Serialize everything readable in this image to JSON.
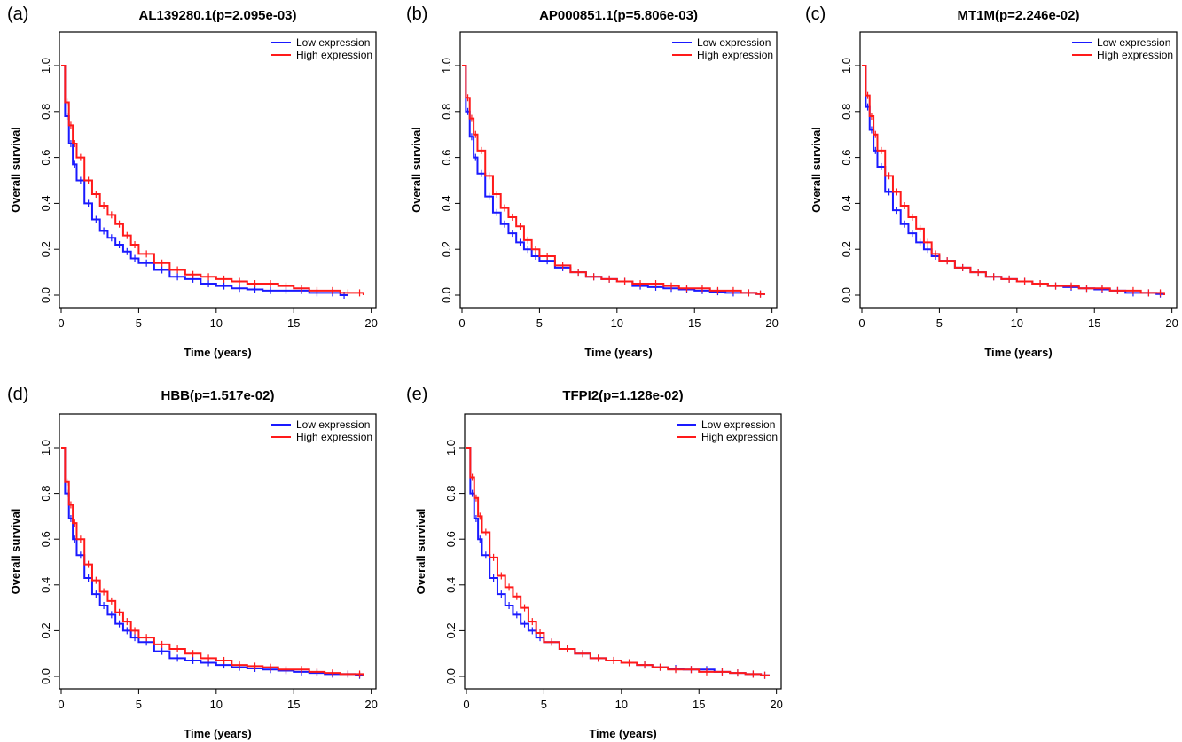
{
  "figure": {
    "colors": {
      "low": "#1a1aff",
      "high": "#ff1a1a",
      "frame": "#000000"
    }
  },
  "chart_data": [
    {
      "type": "line",
      "panel": "(a)",
      "title": "AL139280.1(p=2.095e-03)",
      "xlabel": "Time (years)",
      "ylabel": "Overall survival",
      "xlim": [
        0,
        20
      ],
      "ylim": [
        0,
        1
      ],
      "xticks": [
        "0",
        "5",
        "10",
        "15",
        "20"
      ],
      "yticks": [
        "0.0",
        "0.2",
        "0.4",
        "0.6",
        "0.8",
        "1.0"
      ],
      "legend": {
        "position": "top-right",
        "entries": [
          "Low expression",
          "High expression"
        ]
      },
      "series": [
        {
          "name": "Low expression",
          "color": "#1a1aff",
          "x": [
            0,
            0.25,
            0.5,
            0.75,
            1,
            1.5,
            2,
            2.5,
            3,
            3.5,
            4,
            4.5,
            5,
            6,
            7,
            8,
            9,
            10,
            11,
            12,
            13,
            14,
            15,
            16,
            17,
            18,
            18.5
          ],
          "y": [
            1.0,
            0.78,
            0.66,
            0.57,
            0.5,
            0.4,
            0.33,
            0.28,
            0.25,
            0.22,
            0.19,
            0.16,
            0.14,
            0.11,
            0.08,
            0.07,
            0.05,
            0.04,
            0.03,
            0.025,
            0.02,
            0.02,
            0.02,
            0.01,
            0.01,
            0.0,
            0.0
          ]
        },
        {
          "name": "High expression",
          "color": "#ff1a1a",
          "x": [
            0,
            0.25,
            0.5,
            0.75,
            1,
            1.5,
            2,
            2.5,
            3,
            3.5,
            4,
            4.5,
            5,
            6,
            7,
            8,
            9,
            10,
            11,
            12,
            13,
            14,
            15,
            16,
            17,
            18,
            19,
            19.5
          ],
          "y": [
            1.0,
            0.84,
            0.74,
            0.66,
            0.6,
            0.5,
            0.44,
            0.39,
            0.35,
            0.31,
            0.26,
            0.22,
            0.18,
            0.14,
            0.11,
            0.09,
            0.08,
            0.07,
            0.06,
            0.05,
            0.05,
            0.04,
            0.03,
            0.02,
            0.02,
            0.01,
            0.01,
            0.0
          ]
        }
      ]
    },
    {
      "type": "line",
      "panel": "(b)",
      "title": "AP000851.1(p=5.806e-03)",
      "xlabel": "Time (years)",
      "ylabel": "Overall survival",
      "xlim": [
        0,
        20
      ],
      "ylim": [
        0,
        1
      ],
      "xticks": [
        "0",
        "5",
        "10",
        "15",
        "20"
      ],
      "yticks": [
        "0.0",
        "0.2",
        "0.4",
        "0.6",
        "0.8",
        "1.0"
      ],
      "legend": {
        "position": "top-right",
        "entries": [
          "Low expression",
          "High expression"
        ]
      },
      "series": [
        {
          "name": "Low expression",
          "color": "#1a1aff",
          "x": [
            0,
            0.25,
            0.5,
            0.75,
            1,
            1.5,
            2,
            2.5,
            3,
            3.5,
            4,
            4.5,
            5,
            6,
            7,
            8,
            9,
            10,
            11,
            12,
            13,
            14,
            15,
            16,
            17,
            18,
            19,
            19.5
          ],
          "y": [
            1.0,
            0.8,
            0.69,
            0.6,
            0.53,
            0.43,
            0.36,
            0.31,
            0.27,
            0.23,
            0.2,
            0.17,
            0.15,
            0.12,
            0.1,
            0.08,
            0.07,
            0.06,
            0.04,
            0.035,
            0.03,
            0.025,
            0.02,
            0.015,
            0.01,
            0.01,
            0.005,
            0.0
          ]
        },
        {
          "name": "High expression",
          "color": "#ff1a1a",
          "x": [
            0,
            0.25,
            0.5,
            0.75,
            1,
            1.5,
            2,
            2.5,
            3,
            3.5,
            4,
            4.5,
            5,
            6,
            7,
            8,
            9,
            10,
            11,
            12,
            13,
            14,
            15,
            16,
            17,
            18,
            19,
            19.5
          ],
          "y": [
            1.0,
            0.86,
            0.77,
            0.7,
            0.63,
            0.52,
            0.44,
            0.38,
            0.34,
            0.3,
            0.24,
            0.2,
            0.17,
            0.13,
            0.1,
            0.08,
            0.07,
            0.06,
            0.05,
            0.05,
            0.04,
            0.03,
            0.03,
            0.02,
            0.02,
            0.01,
            0.005,
            0.0
          ]
        }
      ]
    },
    {
      "type": "line",
      "panel": "(c)",
      "title": "MT1M(p=2.246e-02)",
      "xlabel": "Time (years)",
      "ylabel": "Overall survival",
      "xlim": [
        0,
        20
      ],
      "ylim": [
        0,
        1
      ],
      "xticks": [
        "0",
        "5",
        "10",
        "15",
        "20"
      ],
      "yticks": [
        "0.0",
        "0.2",
        "0.4",
        "0.6",
        "0.8",
        "1.0"
      ],
      "legend": {
        "position": "top-right",
        "entries": [
          "Low expression",
          "High expression"
        ]
      },
      "series": [
        {
          "name": "Low expression",
          "color": "#1a1aff",
          "x": [
            0,
            0.25,
            0.5,
            0.75,
            1,
            1.5,
            2,
            2.5,
            3,
            3.5,
            4,
            4.5,
            5,
            6,
            7,
            8,
            9,
            10,
            11,
            12,
            13,
            14,
            15,
            16,
            17,
            18,
            19,
            19.5
          ],
          "y": [
            1.0,
            0.82,
            0.72,
            0.63,
            0.56,
            0.45,
            0.37,
            0.31,
            0.27,
            0.23,
            0.2,
            0.17,
            0.15,
            0.12,
            0.1,
            0.08,
            0.07,
            0.06,
            0.05,
            0.04,
            0.035,
            0.03,
            0.025,
            0.02,
            0.01,
            0.01,
            0.005,
            0.0
          ]
        },
        {
          "name": "High expression",
          "color": "#ff1a1a",
          "x": [
            0,
            0.25,
            0.5,
            0.75,
            1,
            1.5,
            2,
            2.5,
            3,
            3.5,
            4,
            4.5,
            5,
            6,
            7,
            8,
            9,
            10,
            11,
            12,
            13,
            14,
            15,
            16,
            17,
            18,
            19,
            19.5
          ],
          "y": [
            1.0,
            0.87,
            0.78,
            0.7,
            0.63,
            0.52,
            0.45,
            0.39,
            0.34,
            0.29,
            0.23,
            0.18,
            0.15,
            0.12,
            0.1,
            0.08,
            0.07,
            0.06,
            0.05,
            0.04,
            0.04,
            0.03,
            0.03,
            0.02,
            0.02,
            0.01,
            0.01,
            0.0
          ]
        }
      ]
    },
    {
      "type": "line",
      "panel": "(d)",
      "title": "HBB(p=1.517e-02)",
      "xlabel": "Time (years)",
      "ylabel": "Overall survival",
      "xlim": [
        0,
        20
      ],
      "ylim": [
        0,
        1
      ],
      "xticks": [
        "0",
        "5",
        "10",
        "15",
        "20"
      ],
      "yticks": [
        "0.0",
        "0.2",
        "0.4",
        "0.6",
        "0.8",
        "1.0"
      ],
      "legend": {
        "position": "top-right",
        "entries": [
          "Low expression",
          "High expression"
        ]
      },
      "series": [
        {
          "name": "Low expression",
          "color": "#1a1aff",
          "x": [
            0,
            0.25,
            0.5,
            0.75,
            1,
            1.5,
            2,
            2.5,
            3,
            3.5,
            4,
            4.5,
            5,
            6,
            7,
            8,
            9,
            10,
            11,
            12,
            13,
            14,
            15,
            16,
            17,
            18,
            19,
            19.5
          ],
          "y": [
            1.0,
            0.8,
            0.69,
            0.6,
            0.53,
            0.43,
            0.36,
            0.31,
            0.27,
            0.23,
            0.2,
            0.17,
            0.15,
            0.11,
            0.08,
            0.07,
            0.06,
            0.05,
            0.04,
            0.035,
            0.03,
            0.025,
            0.02,
            0.015,
            0.01,
            0.01,
            0.005,
            0.0
          ]
        },
        {
          "name": "High expression",
          "color": "#ff1a1a",
          "x": [
            0,
            0.25,
            0.5,
            0.75,
            1,
            1.5,
            2,
            2.5,
            3,
            3.5,
            4,
            4.5,
            5,
            6,
            7,
            8,
            9,
            10,
            11,
            12,
            13,
            14,
            15,
            16,
            17,
            18,
            19,
            19.5
          ],
          "y": [
            1.0,
            0.85,
            0.75,
            0.67,
            0.6,
            0.49,
            0.42,
            0.37,
            0.33,
            0.28,
            0.24,
            0.2,
            0.17,
            0.14,
            0.12,
            0.1,
            0.08,
            0.07,
            0.05,
            0.045,
            0.04,
            0.03,
            0.03,
            0.02,
            0.015,
            0.01,
            0.01,
            0.0
          ]
        }
      ]
    },
    {
      "type": "line",
      "panel": "(e)",
      "title": "TFPI2(p=1.128e-02)",
      "xlabel": "Time (years)",
      "ylabel": "Overall survival",
      "xlim": [
        0,
        20
      ],
      "ylim": [
        0,
        1
      ],
      "xticks": [
        "0",
        "5",
        "10",
        "15",
        "20"
      ],
      "yticks": [
        "0.0",
        "0.2",
        "0.4",
        "0.6",
        "0.8",
        "1.0"
      ],
      "legend": {
        "position": "top-right",
        "entries": [
          "Low expression",
          "High expression"
        ]
      },
      "series": [
        {
          "name": "Low expression",
          "color": "#1a1aff",
          "x": [
            0,
            0.25,
            0.5,
            0.75,
            1,
            1.5,
            2,
            2.5,
            3,
            3.5,
            4,
            4.5,
            5,
            6,
            7,
            8,
            9,
            10,
            11,
            12,
            13,
            14,
            15,
            16,
            17,
            18,
            19,
            19.5
          ],
          "y": [
            1.0,
            0.8,
            0.69,
            0.6,
            0.53,
            0.43,
            0.36,
            0.31,
            0.27,
            0.23,
            0.2,
            0.17,
            0.15,
            0.12,
            0.1,
            0.08,
            0.07,
            0.06,
            0.05,
            0.04,
            0.035,
            0.03,
            0.03,
            0.02,
            0.015,
            0.01,
            0.005,
            0.0
          ]
        },
        {
          "name": "High expression",
          "color": "#ff1a1a",
          "x": [
            0,
            0.25,
            0.5,
            0.75,
            1,
            1.5,
            2,
            2.5,
            3,
            3.5,
            4,
            4.5,
            5,
            6,
            7,
            8,
            9,
            10,
            11,
            12,
            13,
            14,
            15,
            16,
            17,
            18,
            19,
            19.5
          ],
          "y": [
            1.0,
            0.87,
            0.78,
            0.7,
            0.63,
            0.52,
            0.44,
            0.39,
            0.35,
            0.3,
            0.24,
            0.19,
            0.15,
            0.12,
            0.1,
            0.08,
            0.07,
            0.06,
            0.05,
            0.04,
            0.03,
            0.03,
            0.02,
            0.02,
            0.015,
            0.01,
            0.005,
            0.0
          ]
        }
      ]
    }
  ]
}
